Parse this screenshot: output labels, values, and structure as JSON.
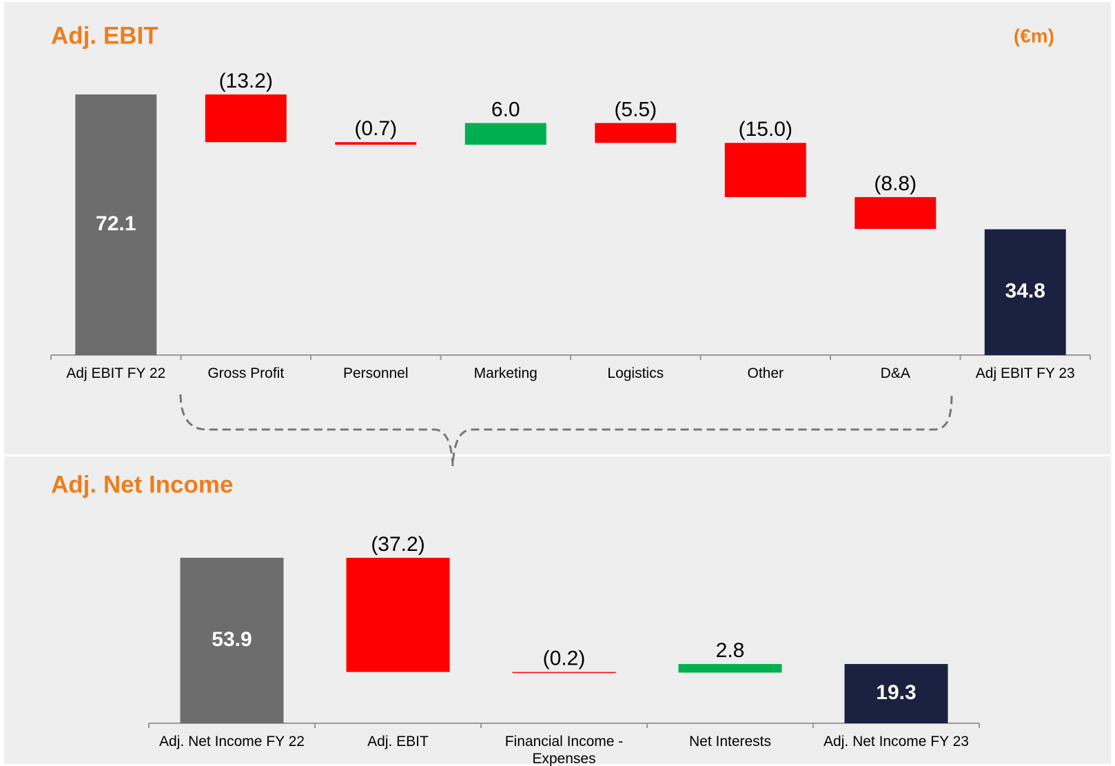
{
  "chart_data": [
    {
      "type": "waterfall",
      "title": "Adj. EBIT",
      "subtitle": "(€m)",
      "categories": [
        "Adj EBIT FY 22",
        "Gross Profit",
        "Personnel",
        "Marketing",
        "Logistics",
        "Other",
        "D&A",
        "Adj EBIT FY 23"
      ],
      "values": [
        72.1,
        -13.2,
        -0.7,
        6.0,
        -5.5,
        -15.0,
        -8.8,
        34.8
      ],
      "value_labels": [
        "72.1",
        "(13.2)",
        "(0.7)",
        "6.0",
        "(5.5)",
        "(15.0)",
        "(8.8)",
        "34.8"
      ],
      "colors": [
        "#6d6d6d",
        "#ff0000",
        "#ff0000",
        "#00b050",
        "#ff0000",
        "#ff0000",
        "#ff0000",
        "#1b2140"
      ]
    },
    {
      "type": "waterfall",
      "title": "Adj. Net Income",
      "categories": [
        "Adj. Net Income FY 22",
        "Adj. EBIT",
        "Financial Income - Expenses",
        "Net Interests",
        "Adj. Net Income FY 23"
      ],
      "values": [
        53.9,
        -37.2,
        -0.2,
        2.8,
        19.3
      ],
      "value_labels": [
        "53.9",
        "(37.2)",
        "(0.2)",
        "2.8",
        "19.3"
      ],
      "colors": [
        "#6d6d6d",
        "#ff0000",
        "#ff0000",
        "#00b050",
        "#1b2140"
      ]
    }
  ]
}
